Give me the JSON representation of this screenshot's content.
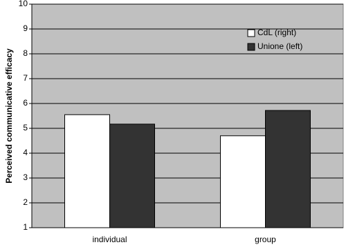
{
  "chart_data": {
    "type": "bar",
    "y_label": "Perceived communicative efficacy",
    "categories": [
      "individual",
      "group"
    ],
    "series": [
      {
        "name": "CdL (right)",
        "color": "#ffffff",
        "values": [
          5.55,
          4.7
        ]
      },
      {
        "name": "Unione (left)",
        "color": "#333333",
        "values": [
          5.17,
          5.72
        ]
      }
    ],
    "ylim": [
      1,
      10
    ],
    "yticks": [
      1,
      2,
      3,
      4,
      5,
      6,
      7,
      8,
      9,
      10
    ],
    "grid": true,
    "legend": "upper right",
    "background": "#c0c0c0"
  }
}
